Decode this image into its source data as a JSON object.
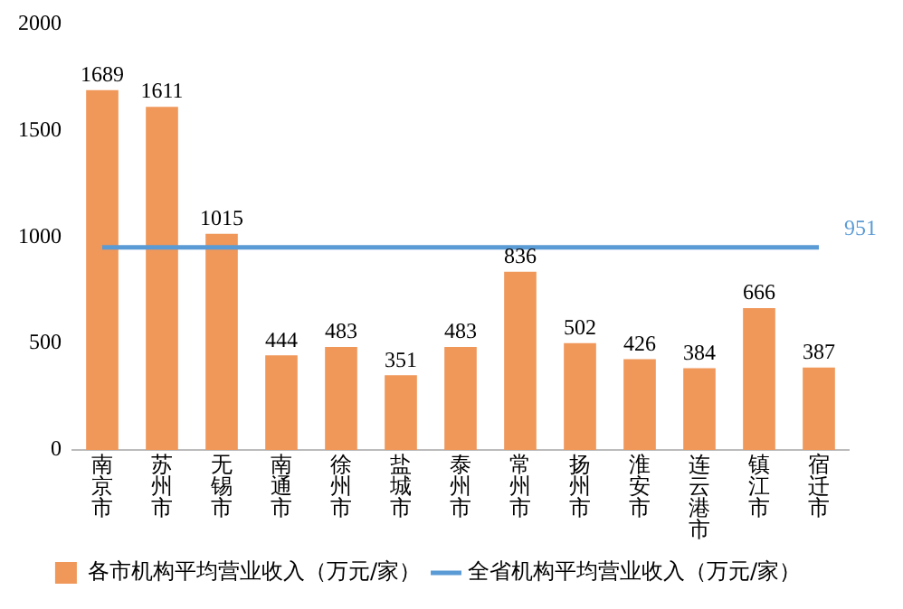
{
  "chart_data": {
    "type": "bar",
    "categories": [
      "南京市",
      "苏州市",
      "无锡市",
      "南通市",
      "徐州市",
      "盐城市",
      "泰州市",
      "常州市",
      "扬州市",
      "淮安市",
      "连云港市",
      "镇江市",
      "宿迁市"
    ],
    "series": [
      {
        "name": "各市机构平均营业收入（万元/家）",
        "color": "#f0975a",
        "values": [
          1689,
          1611,
          1015,
          444,
          483,
          351,
          483,
          836,
          502,
          426,
          384,
          666,
          387
        ],
        "value_labels": [
          "1689",
          "1611",
          "1015",
          "444",
          "483",
          "351",
          "483",
          "836",
          "502",
          "426",
          "384",
          "666",
          "387"
        ]
      },
      {
        "type": "line",
        "name": "全省机构平均营业收入（万元/家）",
        "color": "#5b9bd5",
        "values": [
          951,
          951,
          951,
          951,
          951,
          951,
          951,
          951,
          951,
          951,
          951,
          951,
          951
        ],
        "value_labels": [
          null,
          null,
          null,
          null,
          null,
          null,
          null,
          null,
          null,
          null,
          null,
          null,
          "951"
        ]
      }
    ],
    "ylim": [
      0,
      2000
    ],
    "yticks": [
      0,
      500,
      1000,
      1500,
      2000
    ],
    "grid": false,
    "legend": "bottom",
    "marker": "none"
  }
}
